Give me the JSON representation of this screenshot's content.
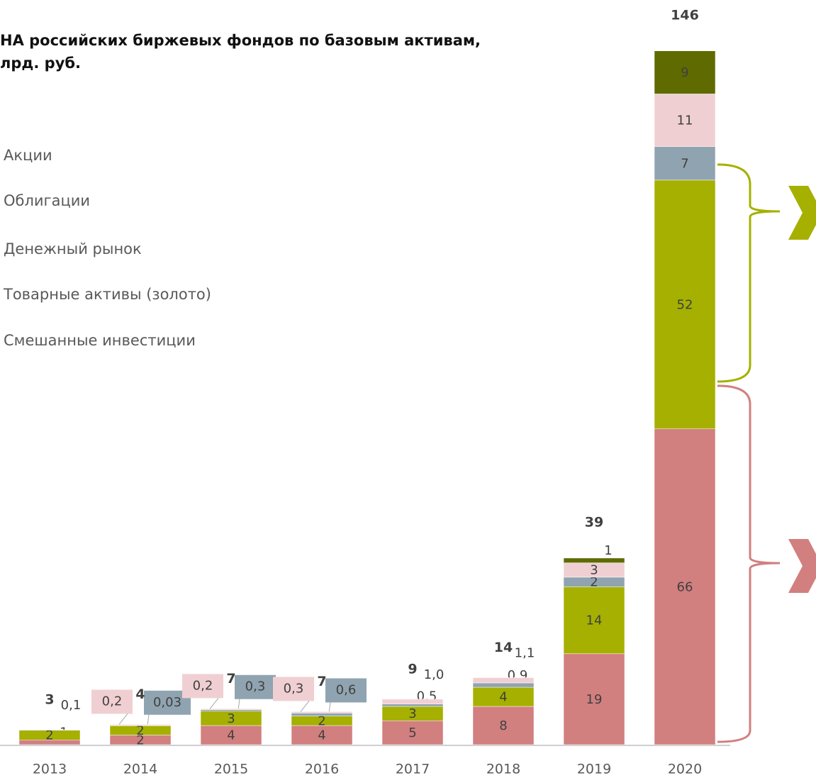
{
  "chart_data": {
    "type": "stacked_bar",
    "title": [
      "НА российских биржевых фондов по базовым активам,",
      "лрд. руб."
    ],
    "categories": [
      "2013",
      "2014",
      "2015",
      "2016",
      "2017",
      "2018",
      "2019",
      "2020"
    ],
    "series": [
      {
        "name": "Акции",
        "color": "#d27f7f",
        "values": [
          1,
          2,
          4,
          4,
          5,
          8,
          19,
          66
        ]
      },
      {
        "name": "Облигации",
        "color": "#a5b000",
        "values": [
          2,
          2,
          3,
          2,
          3,
          4,
          14,
          52
        ]
      },
      {
        "name": "Денежный рынок",
        "color": "#8fa4b0",
        "values": [
          0.1,
          0.03,
          0.3,
          0.6,
          0.5,
          0.9,
          2,
          7
        ],
        "value_labels": [
          "0,1",
          "0,03",
          "0,3",
          "0,6",
          "0,5",
          "0,9",
          "2",
          "7"
        ]
      },
      {
        "name": "Товарные активы (золото)",
        "color": "#f0cfd2",
        "values": [
          null,
          0.2,
          0.2,
          0.3,
          1.0,
          1.1,
          3,
          11
        ],
        "value_labels": [
          null,
          "0,2",
          "0,2",
          "0,3",
          "1,0",
          "1,1",
          "3",
          "11"
        ]
      },
      {
        "name": "Смешанные инвестиции",
        "color": "#5f6b00",
        "values": [
          null,
          null,
          null,
          null,
          null,
          null,
          1,
          9
        ]
      }
    ],
    "totals": [
      3,
      4,
      7,
      7,
      9,
      14,
      39,
      146
    ],
    "ylim": [
      0,
      150
    ]
  }
}
